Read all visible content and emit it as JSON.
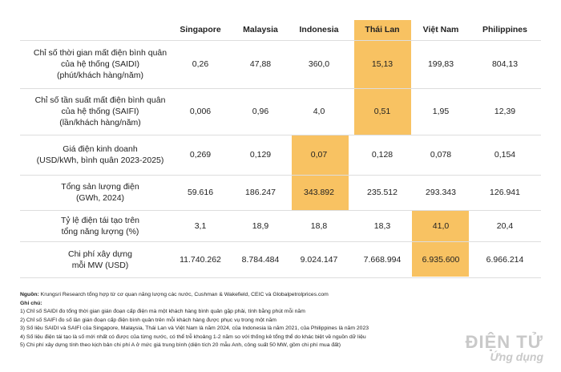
{
  "table": {
    "columns": [
      "Singapore",
      "Malaysia",
      "Indonesia",
      "Thái Lan",
      "Việt Nam",
      "Philippines"
    ],
    "rows": [
      {
        "label": [
          "Chỉ số thời gian mất điện bình quân",
          "của hệ thống (SAIDI)",
          "(phút/khách hàng/năm)"
        ],
        "values": [
          "0,26",
          "47,88",
          "360,0",
          "15,13",
          "199,83",
          "804,13"
        ]
      },
      {
        "label": [
          "Chỉ số tần suất mất điện bình quân",
          "của hệ thống (SAIFI)",
          "(lần/khách hàng/năm)"
        ],
        "values": [
          "0,006",
          "0,96",
          "4,0",
          "0,51",
          "1,95",
          "12,39"
        ]
      },
      {
        "label": [
          "Giá điện kinh doanh",
          "(USD/kWh, bình quân 2023-2025)"
        ],
        "values": [
          "0,269",
          "0,129",
          "0,07",
          "0,128",
          "0,078",
          "0,154"
        ]
      },
      {
        "label": [
          "Tổng sản lượng điện",
          "(GWh, 2024)"
        ],
        "values": [
          "59.616",
          "186.247",
          "343.892",
          "235.512",
          "293.343",
          "126.941"
        ]
      },
      {
        "label": [
          "Tỷ lệ điện tái tạo trên",
          "tổng năng lượng (%)"
        ],
        "values": [
          "3,1",
          "18,9",
          "18,8",
          "18,3",
          "41,0",
          "20,4"
        ]
      },
      {
        "label": [
          "Chi phí xây dựng",
          "mỗi MW (USD)"
        ],
        "values": [
          "11.740.262",
          "8.784.484",
          "9.024.147",
          "7.668.994",
          "6.935.600",
          "6.966.214"
        ]
      }
    ]
  },
  "notes": {
    "source_label": "Nguồn:",
    "source_text": "Krungsri Research tổng hợp từ cơ quan năng lượng các nước, Cushman & Wakefield, CEIC và Globalpetrolprices.com",
    "title": "Ghi chú:",
    "items": [
      "1) Chỉ số SAIDI đo tổng thời gian gián đoạn cấp điện mà một khách hàng bình quân gặp phải, tính bằng phút mỗi năm",
      "2) Chỉ số SAIFI đo số lần gián đoạn cấp điện bình quân trên mỗi khách hàng được phục vụ trong một năm",
      "3) Số liệu SAIDI và SAIFI của Singapore, Malaysia, Thái Lan và Việt Nam là năm 2024, của Indonesia là năm 2021, của Philippines là năm 2023",
      "4) Số liệu điện tái tạo là số mới nhất có được của từng nước, có thể trễ khoảng 1-2 năm so với thống kê tổng thể do khác biệt về nguồn dữ liệu",
      "5) Chi phí xây dựng tính theo kịch bản chi phí A ở mức giá trung bình (diện tích 20 mẫu Anh, công suất 50 MW, gồm chi phí mua đất)"
    ]
  },
  "watermark": {
    "title": "ĐIỆN TỬ",
    "subtitle": "Ứng dụng"
  }
}
